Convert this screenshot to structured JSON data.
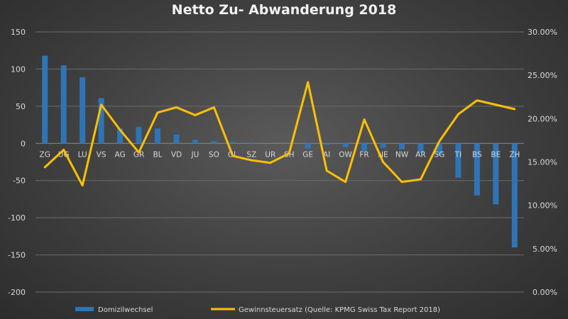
{
  "chart_data": {
    "type": "bar",
    "title": "Netto Zu- Abwanderung  2018",
    "categories": [
      "ZG",
      "UG",
      "LU",
      "VS",
      "AG",
      "GR",
      "BL",
      "VD",
      "JU",
      "SO",
      "GL",
      "SZ",
      "UR",
      "SH",
      "GE",
      "AI",
      "OW",
      "FR",
      "NE",
      "NW",
      "AR",
      "SG",
      "TI",
      "BS",
      "BE",
      "ZH"
    ],
    "y_left": {
      "min": -200,
      "max": 150,
      "step": 50,
      "ticks": [
        "-200",
        "-150",
        "-100",
        "-50",
        "0",
        "50",
        "100",
        "150"
      ]
    },
    "y_right": {
      "min": 0,
      "max": 30,
      "step": 5,
      "ticks": [
        "0.00%",
        "5.00%",
        "10.00%",
        "15.00%",
        "20.00%",
        "25.00%",
        "30.00%"
      ]
    },
    "grid": true,
    "legend_position": "bottom",
    "series": [
      {
        "name": "Domizilwechsel",
        "type": "bar",
        "axis": "left",
        "color": "#2e75b6",
        "values": [
          118,
          105,
          89,
          61,
          20,
          22,
          20,
          12,
          5,
          3,
          2,
          1,
          0,
          0,
          -7,
          -2,
          -5,
          -10,
          -6,
          -8,
          -13,
          -16,
          -46,
          -70,
          -82,
          -140
        ]
      },
      {
        "name": "Gewinnsteuersatz (Quelle: KPMG Swiss Tax Report 2018)",
        "type": "line",
        "axis": "right",
        "color": "#ffc000",
        "values": [
          14.4,
          16.4,
          12.3,
          21.6,
          18.7,
          16.1,
          20.7,
          21.3,
          20.4,
          21.3,
          15.7,
          15.2,
          14.9,
          16.0,
          24.2,
          14.0,
          12.7,
          19.9,
          15.0,
          12.7,
          13.0,
          17.4,
          20.5,
          22.1,
          21.6,
          21.1
        ]
      }
    ]
  }
}
